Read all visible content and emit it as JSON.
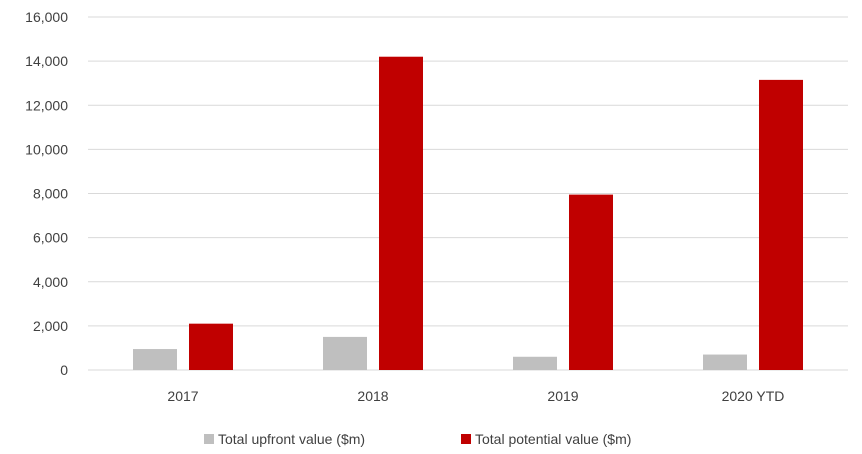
{
  "chart_data": {
    "type": "bar",
    "categories": [
      "2017",
      "2018",
      "2019",
      "2020 YTD"
    ],
    "series": [
      {
        "name": "Total upfront value ($m)",
        "values": [
          950,
          1500,
          600,
          700
        ],
        "color": "#bfbfbf"
      },
      {
        "name": "Total potential value ($m)",
        "values": [
          2100,
          14200,
          7950,
          13150
        ],
        "color": "#c00000"
      }
    ],
    "ylim": [
      0,
      16000
    ],
    "yticks": [
      "0",
      "2,000",
      "4,000",
      "6,000",
      "8,000",
      "10,000",
      "12,000",
      "14,000",
      "16,000"
    ],
    "ytick_values": [
      0,
      2000,
      4000,
      6000,
      8000,
      10000,
      12000,
      14000,
      16000
    ],
    "grid": true,
    "legend_position": "bottom",
    "gridline_color": "#d9d9d9",
    "text_color": "#404040"
  }
}
